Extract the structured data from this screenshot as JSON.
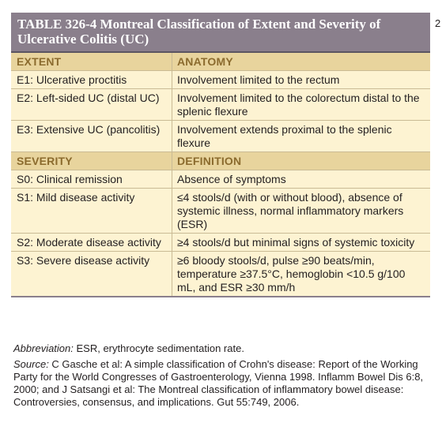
{
  "edge_mark": "2",
  "table": {
    "title": "TABLE 326-4  Montreal Classification of Extent and Severity of Ulcerative Colitis (UC)",
    "sections": [
      {
        "headers": [
          "EXTENT",
          "ANATOMY"
        ],
        "rows": [
          [
            "E1: Ulcerative proctitis",
            "Involvement limited to the rectum"
          ],
          [
            "E2: Left-sided UC (distal UC)",
            "Involvement limited to the colorectum distal to the splenic flexure"
          ],
          [
            "E3: Extensive UC (pancolitis)",
            "Involvement extends proximal to the splenic flexure"
          ]
        ]
      },
      {
        "headers": [
          "SEVERITY",
          "DEFINITION"
        ],
        "rows": [
          [
            "S0: Clinical remission",
            "Absence of symptoms"
          ],
          [
            "S1: Mild disease activity",
            "≤4 stools/d (with or without blood), absence of systemic illness, normal inflammatory markers (ESR)"
          ],
          [
            "S2: Moderate disease activity",
            "≥4 stools/d but minimal signs of systemic toxicity"
          ],
          [
            "S3: Severe disease activity",
            "≥6 bloody stools/d, pulse ≥90 beats/min, temperature ≥37.5°C, hemoglobin <10.5 g/100 mL, and ESR ≥30 mm/h"
          ]
        ]
      }
    ]
  },
  "footnotes": {
    "abbreviation_label": "Abbreviation:",
    "abbreviation_text": " ESR, erythrocyte sedimentation rate.",
    "source_label": "Source:",
    "source_text": " C Gasche et al: A simple classification of Crohn's disease: Report of the Working Party for the World Congresses of Gastroenterology, Vienna 1998. Inflamm Bowel Dis 6:8, 2000; and J Satsangi et al: The Montreal classification of inflammatory bowel disease: Controversies, consensus, and implications. Gut 55:749, 2006."
  }
}
